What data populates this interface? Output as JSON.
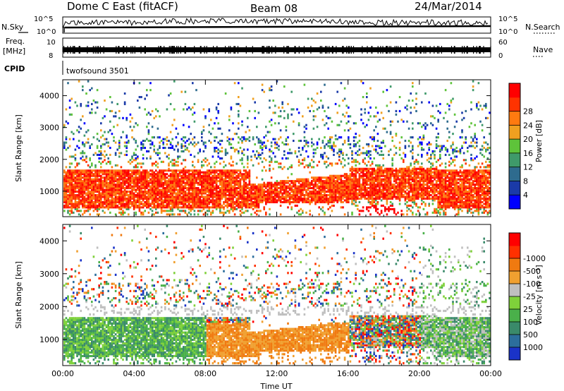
{
  "header": {
    "station": "Dome C East (fitACF)",
    "beam": "Beam 08",
    "date": "24/Mar/2014"
  },
  "chart_data": [
    {
      "type": "line",
      "panel": "N.Sky / N.Search",
      "left_label": "N.Sky",
      "right_label": "N.Search",
      "left_ticks": [
        "10^5",
        "10^0"
      ],
      "right_ticks": [
        "10^5",
        "10^0"
      ],
      "x_ticks": [
        "00:00",
        "04:00",
        "08:00",
        "12:00",
        "16:00",
        "20:00",
        "00:00"
      ],
      "xlim": [
        0,
        24
      ],
      "series_hint": "noise level near top of range throughout the day"
    },
    {
      "type": "line",
      "panel": "Freq / Nave",
      "left_label_lines": [
        "Freq.",
        "[MHz]"
      ],
      "right_label": "Nave",
      "left_ticks": [
        "10",
        "8"
      ],
      "right_ticks": [
        "60",
        "0"
      ],
      "xlim": [
        0,
        24
      ],
      "series_hint": "frequency nearly constant, dense band"
    },
    {
      "type": "table",
      "panel": "CPID",
      "label": "CPID",
      "value": "twofsound 3501"
    },
    {
      "type": "heatmap",
      "panel": "Power",
      "ylabel": "Slant Range [km]",
      "y_ticks": [
        1000,
        2000,
        3000,
        4000
      ],
      "ylim": [
        200,
        4500
      ],
      "xlim": [
        0,
        24
      ],
      "x_ticks": [
        "00:00",
        "04:00",
        "08:00",
        "12:00",
        "16:00",
        "20:00",
        "00:00"
      ],
      "colorbar_label": "Power [dB]",
      "colorbar_ticks": [
        4,
        8,
        12,
        16,
        20,
        24,
        28
      ],
      "colors": [
        "#0000ff",
        "#1a3aa8",
        "#2e6b8e",
        "#3f9a6a",
        "#5ec33a",
        "#f0a020",
        "#ff7a10",
        "#ff3300",
        "#ff0000"
      ]
    },
    {
      "type": "heatmap",
      "panel": "Velocity",
      "ylabel": "Slant Range [km]",
      "y_ticks": [
        1000,
        2000,
        3000,
        4000
      ],
      "ylim": [
        200,
        4500
      ],
      "xlim": [
        0,
        24
      ],
      "x_ticks": [
        "00:00",
        "04:00",
        "08:00",
        "12:00",
        "16:00",
        "20:00",
        "00:00"
      ],
      "xlabel": "Time UT",
      "colorbar_label": "Velocity [m s⁻¹]",
      "colorbar_ticks": [
        1000,
        500,
        100,
        25,
        -25,
        -100,
        -500,
        -1000
      ],
      "colors": [
        "#1a33c8",
        "#2c6e9c",
        "#3a8a6a",
        "#4ab04a",
        "#7fd13a",
        "#bfbfbf",
        "#f0a030",
        "#f07a10",
        "#ff3000",
        "#ff0000"
      ]
    }
  ]
}
